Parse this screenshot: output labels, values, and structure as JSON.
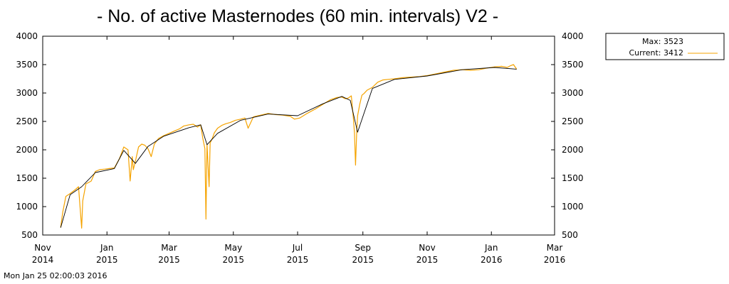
{
  "chart_data": {
    "type": "line",
    "title": "- No. of active Masternodes (60 min. intervals) V2 -",
    "footer_timestamp": "Mon Jan 25 02:00:03 2016",
    "xlabel": "",
    "ylabel": "",
    "ylim": [
      500,
      4000
    ],
    "y_ticks": [
      500,
      1000,
      1500,
      2000,
      2500,
      3000,
      3500,
      4000
    ],
    "x_range": [
      "2014-11-01",
      "2016-03-01"
    ],
    "x_ticks": [
      {
        "date": "2014-11-01",
        "month": "Nov",
        "year": "2014"
      },
      {
        "date": "2015-01-01",
        "month": "Jan",
        "year": "2015"
      },
      {
        "date": "2015-03-01",
        "month": "Mar",
        "year": "2015"
      },
      {
        "date": "2015-05-01",
        "month": "May",
        "year": "2015"
      },
      {
        "date": "2015-07-01",
        "month": "Jul",
        "year": "2015"
      },
      {
        "date": "2015-09-01",
        "month": "Sep",
        "year": "2015"
      },
      {
        "date": "2015-11-01",
        "month": "Nov",
        "year": "2015"
      },
      {
        "date": "2016-01-01",
        "month": "Jan",
        "year": "2016"
      },
      {
        "date": "2016-03-01",
        "month": "Mar",
        "year": "2016"
      }
    ],
    "grid": false,
    "legend": {
      "placement": "top-right outside",
      "max_label": "Max: 3523",
      "current_label": "Current: 3412"
    },
    "colors": {
      "series": "#f5a300",
      "trend": "#000000",
      "axes": "#000000",
      "background": "#ffffff"
    },
    "series": [
      {
        "role": "active masternodes",
        "x": [
          "2014-11-18",
          "2014-11-20",
          "2014-11-23",
          "2014-11-27",
          "2014-12-02",
          "2014-12-05",
          "2014-12-08",
          "2014-12-09",
          "2014-12-12",
          "2014-12-17",
          "2014-12-21",
          "2014-12-25",
          "2014-12-30",
          "2015-01-03",
          "2015-01-08",
          "2015-01-13",
          "2015-01-17",
          "2015-01-21",
          "2015-01-23",
          "2015-01-25",
          "2015-01-26",
          "2015-01-28",
          "2015-01-31",
          "2015-02-03",
          "2015-02-06",
          "2015-02-09",
          "2015-02-12",
          "2015-02-15",
          "2015-02-19",
          "2015-02-24",
          "2015-03-01",
          "2015-03-06",
          "2015-03-11",
          "2015-03-15",
          "2015-03-20",
          "2015-03-24",
          "2015-03-28",
          "2015-03-31",
          "2015-04-02",
          "2015-04-04",
          "2015-04-05",
          "2015-04-06",
          "2015-04-08",
          "2015-04-09",
          "2015-04-11",
          "2015-04-13",
          "2015-04-16",
          "2015-04-20",
          "2015-04-24",
          "2015-04-28",
          "2015-05-03",
          "2015-05-08",
          "2015-05-12",
          "2015-05-15",
          "2015-05-20",
          "2015-05-27",
          "2015-06-03",
          "2015-06-10",
          "2015-06-17",
          "2015-06-24",
          "2015-06-28",
          "2015-07-03",
          "2015-07-10",
          "2015-07-18",
          "2015-07-25",
          "2015-08-01",
          "2015-08-07",
          "2015-08-12",
          "2015-08-15",
          "2015-08-18",
          "2015-08-21",
          "2015-08-23",
          "2015-08-24",
          "2015-08-25",
          "2015-08-26",
          "2015-08-27",
          "2015-08-29",
          "2015-08-31",
          "2015-09-02",
          "2015-09-05",
          "2015-09-10",
          "2015-09-15",
          "2015-09-20",
          "2015-09-25",
          "2015-10-01",
          "2015-10-09",
          "2015-10-17",
          "2015-10-25",
          "2015-11-02",
          "2015-11-10",
          "2015-11-18",
          "2015-11-26",
          "2015-12-04",
          "2015-12-12",
          "2015-12-20",
          "2015-12-28",
          "2016-01-04",
          "2016-01-11",
          "2016-01-16",
          "2016-01-19",
          "2016-01-22",
          "2016-01-25"
        ],
        "y": [
          630,
          900,
          1180,
          1230,
          1300,
          1350,
          620,
          1100,
          1400,
          1450,
          1620,
          1650,
          1660,
          1670,
          1680,
          1850,
          2050,
          2000,
          1450,
          1880,
          1650,
          1800,
          2050,
          2100,
          2080,
          2020,
          1880,
          2100,
          2200,
          2250,
          2290,
          2330,
          2370,
          2420,
          2440,
          2450,
          2400,
          2440,
          2200,
          2020,
          780,
          2100,
          1350,
          2120,
          2200,
          2300,
          2380,
          2430,
          2460,
          2480,
          2520,
          2540,
          2560,
          2380,
          2580,
          2610,
          2640,
          2620,
          2610,
          2590,
          2540,
          2560,
          2640,
          2720,
          2800,
          2880,
          2920,
          2930,
          2900,
          2910,
          2950,
          2550,
          2300,
          1730,
          2260,
          2600,
          2800,
          2960,
          2990,
          3050,
          3100,
          3190,
          3230,
          3240,
          3250,
          3270,
          3280,
          3290,
          3310,
          3340,
          3370,
          3400,
          3410,
          3400,
          3410,
          3440,
          3460,
          3470,
          3450,
          3480,
          3500,
          3420
        ]
      },
      {
        "role": "trend",
        "x": [
          "2014-11-18",
          "2014-11-27",
          "2014-12-08",
          "2014-12-21",
          "2015-01-08",
          "2015-01-17",
          "2015-01-28",
          "2015-02-09",
          "2015-02-24",
          "2015-03-20",
          "2015-03-31",
          "2015-04-06",
          "2015-04-16",
          "2015-05-08",
          "2015-06-03",
          "2015-07-01",
          "2015-07-25",
          "2015-08-12",
          "2015-08-20",
          "2015-08-27",
          "2015-09-10",
          "2015-10-01",
          "2015-11-01",
          "2015-12-04",
          "2016-01-04",
          "2016-01-25"
        ],
        "y": [
          630,
          1210,
          1350,
          1600,
          1670,
          1990,
          1760,
          2060,
          2240,
          2390,
          2440,
          2090,
          2290,
          2520,
          2630,
          2600,
          2810,
          2940,
          2870,
          2310,
          3080,
          3240,
          3300,
          3410,
          3450,
          3420
        ]
      }
    ]
  }
}
